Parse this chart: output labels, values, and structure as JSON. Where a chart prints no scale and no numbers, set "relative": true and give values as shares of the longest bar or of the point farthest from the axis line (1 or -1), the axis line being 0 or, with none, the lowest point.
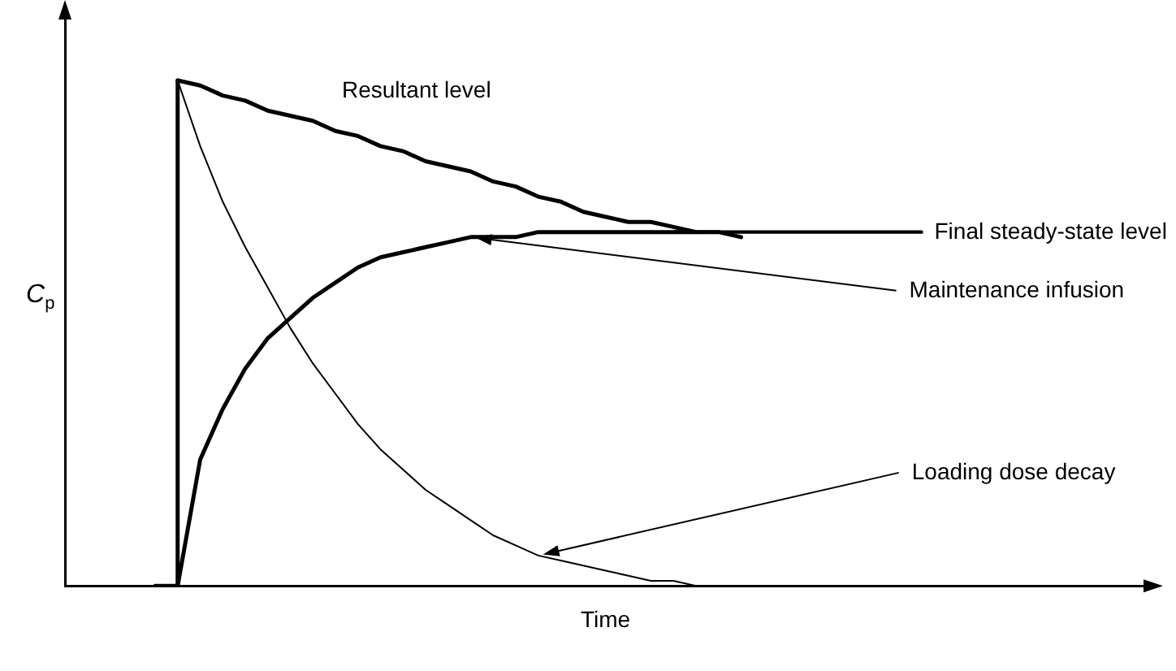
{
  "chart_data": {
    "type": "line",
    "relative": true,
    "xlabel": "Time",
    "ylabel": "C$_{p}$",
    "legend": false,
    "grid": false,
    "categories": [
      null,
      null,
      null,
      null,
      null,
      null,
      null,
      null,
      null,
      null,
      null,
      null,
      null,
      null,
      null,
      null,
      null,
      null,
      null,
      null,
      null,
      null,
      null,
      null,
      null,
      null,
      null,
      null,
      null,
      null,
      null,
      null,
      null,
      null,
      null,
      null,
      null,
      null,
      null,
      null,
      null,
      null,
      null,
      null,
      null,
      null,
      null,
      null,
      null
    ],
    "series": [
      {
        "name": "Resultant level",
        "color": "#000000",
        "values": [
          null,
          null,
          null,
          null,
          null,
          1,
          0.99,
          0.97,
          0.96,
          0.94,
          0.93,
          0.92,
          0.9,
          0.89,
          0.87,
          0.86,
          0.84,
          0.83,
          0.82,
          0.8,
          0.79,
          0.77,
          0.76,
          0.74,
          0.73,
          0.72,
          0.72,
          0.71,
          0.7,
          0.7,
          0.69,
          null,
          null,
          null,
          null,
          null,
          null,
          null,
          null,
          null,
          null,
          null,
          null,
          null,
          null,
          null,
          null,
          null,
          null
        ]
      },
      {
        "name": "Final steady-state level",
        "color": "#000000",
        "values": [
          null,
          null,
          null,
          null,
          null,
          null,
          null,
          null,
          null,
          null,
          null,
          null,
          null,
          null,
          null,
          null,
          null,
          null,
          null,
          null,
          null,
          null,
          null,
          null,
          null,
          null,
          null,
          0.7,
          0.7,
          0.7,
          0.7,
          0.7,
          0.7,
          0.7,
          0.7,
          0.7,
          0.7,
          0.7,
          0.7,
          null,
          null,
          null,
          null,
          null,
          null,
          null,
          null,
          null,
          null
        ]
      },
      {
        "name": "Maintenance infusion",
        "color": "#000000",
        "values": [
          null,
          null,
          null,
          null,
          null,
          0,
          0.25,
          0.35,
          0.43,
          0.49,
          0.53,
          0.57,
          0.6,
          0.63,
          0.65,
          0.66,
          0.67,
          0.68,
          0.69,
          0.69,
          0.69,
          0.7,
          0.7,
          0.7,
          0.7,
          0.7,
          0.7,
          0.7,
          0.7,
          null,
          null,
          null,
          null,
          null,
          null,
          null,
          null,
          null,
          null,
          null,
          null,
          null,
          null,
          null,
          null,
          null,
          null,
          null,
          null
        ]
      },
      {
        "name": "Loading dose decay",
        "color": "#000000",
        "values": [
          null,
          null,
          null,
          null,
          null,
          1,
          0.87,
          0.76,
          0.67,
          0.59,
          0.51,
          0.44,
          0.38,
          0.32,
          0.27,
          0.23,
          0.19,
          0.16,
          0.13,
          0.1,
          0.08,
          0.06,
          0.05,
          0.04,
          0.03,
          0.02,
          0.01,
          0.01,
          0,
          0,
          null,
          null,
          null,
          null,
          null,
          null,
          null,
          null,
          null,
          null,
          null,
          null,
          null,
          null,
          null,
          null,
          null,
          null,
          null
        ]
      },
      {
        "type": "step",
        "color": "#000000",
        "values": [
          null,
          null,
          null,
          null,
          0,
          1,
          null,
          null,
          null,
          null,
          null,
          null,
          null,
          null,
          null,
          null,
          null,
          null,
          null,
          null,
          null,
          null,
          null,
          null,
          null,
          null,
          null,
          null,
          null,
          null,
          null,
          null,
          null,
          null,
          null,
          null,
          null,
          null,
          null,
          null,
          null,
          null,
          null,
          null,
          null,
          null,
          null,
          null,
          null
        ]
      }
    ]
  }
}
